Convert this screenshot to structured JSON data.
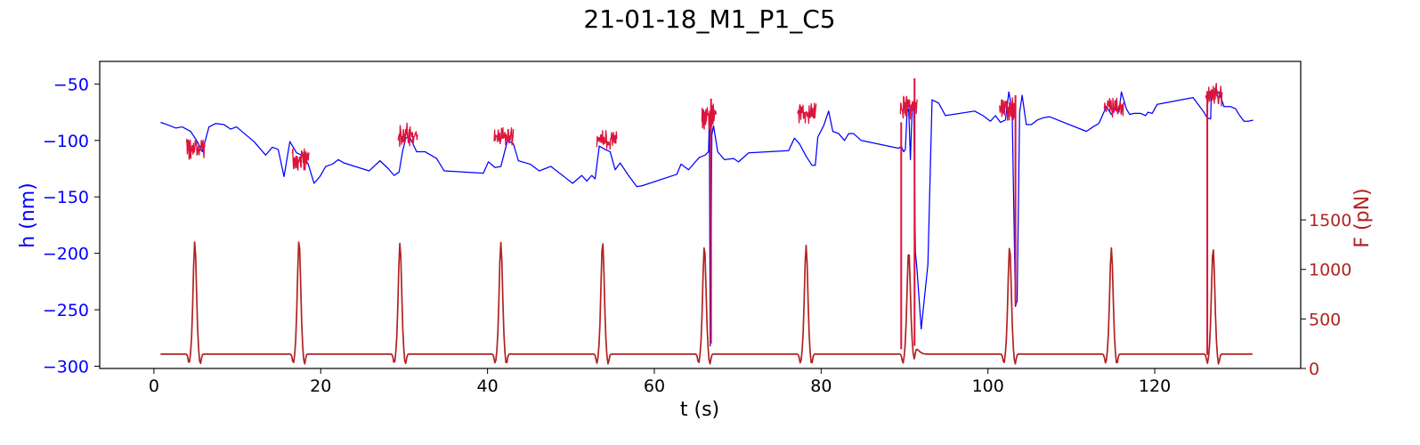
{
  "chart_data": {
    "type": "line",
    "title": "21-01-18_M1_P1_C5",
    "xlabel": "t (s)",
    "ylabel_left": "h (nm)",
    "ylabel_right": "F (pN)",
    "xlim": [
      -6.5,
      137.5
    ],
    "ylim_left": [
      -302,
      -30
    ],
    "ylim_right": [
      0,
      3100
    ],
    "x_ticks": [
      0,
      20,
      40,
      60,
      80,
      100,
      120
    ],
    "y_left_ticks": [
      -50,
      -100,
      -150,
      -200,
      -250,
      -300
    ],
    "y_right_ticks": [
      0,
      500,
      1000,
      1500
    ],
    "grid": false,
    "colors": {
      "height_line": "#0000ff",
      "height_noisy": "#dc143c",
      "force_line": "#b22222",
      "left_axis_text": "#0000ff",
      "right_axis_text": "#b22222"
    },
    "series": [
      {
        "name": "",
        "axis": "left",
        "color": "#0000ff",
        "points": [
          [
            0.8,
            -84
          ],
          [
            1.6,
            -86
          ],
          [
            2.6,
            -89
          ],
          [
            3.4,
            -88
          ],
          [
            4.4,
            -92
          ],
          [
            5.2,
            -101
          ],
          [
            5.8,
            -110
          ],
          [
            6.6,
            -88
          ],
          [
            7.4,
            -85
          ],
          [
            8.4,
            -86
          ],
          [
            9.2,
            -90
          ],
          [
            9.9,
            -88
          ],
          [
            12,
            -101
          ],
          [
            13.4,
            -113
          ],
          [
            14.2,
            -106
          ],
          [
            14.9,
            -108
          ],
          [
            15.6,
            -132
          ],
          [
            16.3,
            -101
          ],
          [
            17.1,
            -111
          ],
          [
            17.7,
            -113
          ],
          [
            18.5,
            -121
          ],
          [
            19.2,
            -138
          ],
          [
            19.9,
            -132
          ],
          [
            20.6,
            -123
          ],
          [
            21.4,
            -121
          ],
          [
            22.1,
            -117
          ],
          [
            22.8,
            -120
          ],
          [
            25.8,
            -127
          ],
          [
            27.1,
            -118
          ],
          [
            28.1,
            -125
          ],
          [
            28.8,
            -131
          ],
          [
            29.4,
            -128
          ],
          [
            29.8,
            -110
          ],
          [
            30.2,
            -98
          ],
          [
            30.6,
            -96
          ],
          [
            31.5,
            -110
          ],
          [
            32.5,
            -110
          ],
          [
            33.9,
            -116
          ],
          [
            34.8,
            -127
          ],
          [
            39.5,
            -129
          ],
          [
            40.1,
            -119
          ],
          [
            40.9,
            -124
          ],
          [
            41.6,
            -123
          ],
          [
            42.4,
            -100
          ],
          [
            43.1,
            -103
          ],
          [
            43.7,
            -118
          ],
          [
            45.1,
            -121
          ],
          [
            46.2,
            -127
          ],
          [
            46.9,
            -125
          ],
          [
            47.6,
            -123
          ],
          [
            50.2,
            -138
          ],
          [
            51.3,
            -131
          ],
          [
            51.9,
            -136
          ],
          [
            52.5,
            -131
          ],
          [
            52.9,
            -134
          ],
          [
            53.4,
            -105
          ],
          [
            54.1,
            -108
          ],
          [
            54.7,
            -110
          ],
          [
            55.3,
            -126
          ],
          [
            55.9,
            -120
          ],
          [
            56.9,
            -131
          ],
          [
            57.9,
            -141
          ],
          [
            58.6,
            -140
          ],
          [
            62.7,
            -130
          ],
          [
            63.2,
            -121
          ],
          [
            64.1,
            -126
          ],
          [
            64.8,
            -120
          ],
          [
            65.4,
            -115
          ],
          [
            66.1,
            -113
          ],
          [
            66.5,
            -110
          ],
          [
            66.6,
            -82
          ],
          [
            66.7,
            -282
          ],
          [
            66.9,
            -95
          ],
          [
            67.1,
            -87
          ],
          [
            67.6,
            -110
          ],
          [
            68.4,
            -117
          ],
          [
            69.5,
            -116
          ],
          [
            70.1,
            -119
          ],
          [
            71.3,
            -111
          ],
          [
            76.1,
            -109
          ],
          [
            76.8,
            -98
          ],
          [
            77.4,
            -103
          ],
          [
            78.2,
            -114
          ],
          [
            78.9,
            -122
          ],
          [
            79.3,
            -122
          ],
          [
            79.6,
            -97
          ],
          [
            80.3,
            -87
          ],
          [
            80.9,
            -74
          ],
          [
            81.4,
            -92
          ],
          [
            82.1,
            -94
          ],
          [
            82.8,
            -100
          ],
          [
            83.3,
            -94
          ],
          [
            83.9,
            -94
          ],
          [
            84.8,
            -100
          ],
          [
            89.3,
            -107
          ],
          [
            89.6,
            -105
          ],
          [
            89.9,
            -110
          ],
          [
            90.1,
            -108
          ],
          [
            90.3,
            -75
          ],
          [
            90.5,
            -72
          ],
          [
            90.7,
            -117
          ],
          [
            90.9,
            -75
          ],
          [
            91.1,
            -67
          ],
          [
            91.3,
            -199
          ],
          [
            91.5,
            -215
          ],
          [
            92,
            -267
          ],
          [
            92.8,
            -210
          ],
          [
            93.3,
            -64
          ],
          [
            94.1,
            -67
          ],
          [
            94.9,
            -78
          ],
          [
            98.4,
            -74
          ],
          [
            99.4,
            -78
          ],
          [
            100.3,
            -83
          ],
          [
            100.9,
            -78
          ],
          [
            101.5,
            -84
          ],
          [
            102.1,
            -82
          ],
          [
            102.5,
            -57
          ],
          [
            102.9,
            -73
          ],
          [
            103.3,
            -247
          ],
          [
            103.5,
            -242
          ],
          [
            103.8,
            -75
          ],
          [
            104.1,
            -60
          ],
          [
            104.6,
            -86
          ],
          [
            105.2,
            -86
          ],
          [
            105.9,
            -82
          ],
          [
            106.6,
            -80
          ],
          [
            107.4,
            -79
          ],
          [
            111.8,
            -92
          ],
          [
            112.6,
            -88
          ],
          [
            113.3,
            -85
          ],
          [
            114.2,
            -70
          ],
          [
            114.8,
            -77
          ],
          [
            115.3,
            -72
          ],
          [
            115.7,
            -75
          ],
          [
            116,
            -57
          ],
          [
            116.6,
            -72
          ],
          [
            117,
            -77
          ],
          [
            117.5,
            -76
          ],
          [
            118.3,
            -76
          ],
          [
            118.9,
            -78
          ],
          [
            119.2,
            -75
          ],
          [
            119.7,
            -76
          ],
          [
            120.3,
            -68
          ],
          [
            124.6,
            -62
          ],
          [
            125.2,
            -68
          ],
          [
            125.8,
            -74
          ],
          [
            126.3,
            -80
          ],
          [
            126.7,
            -81
          ],
          [
            126.8,
            -55
          ],
          [
            127.1,
            -60
          ],
          [
            127.7,
            -57
          ],
          [
            128.3,
            -70
          ],
          [
            129.1,
            -70
          ],
          [
            129.7,
            -72
          ],
          [
            130.1,
            -77
          ],
          [
            130.7,
            -83
          ],
          [
            131.2,
            -83
          ],
          [
            131.8,
            -82
          ]
        ]
      },
      {
        "name": "",
        "axis": "left",
        "color": "#dc143c",
        "segments": [
          {
            "x": [
              3.9,
              6.1
            ],
            "center": -107,
            "amp": 9
          },
          {
            "x": [
              16.6,
              18.6
            ],
            "center": -117,
            "amp": 9
          },
          {
            "x": [
              29.3,
              31.6
            ],
            "center": -95,
            "amp": 9
          },
          {
            "x": [
              40.8,
              43.1
            ],
            "center": -97,
            "amp": 8
          },
          {
            "x": [
              53.1,
              55.5
            ],
            "center": -100,
            "amp": 8
          },
          {
            "x": [
              65.7,
              67.4
            ],
            "center": -80,
            "amp": 10
          },
          {
            "x": [
              77.2,
              79.4
            ],
            "center": -76,
            "amp": 8
          },
          {
            "x": [
              89.5,
              91.5
            ],
            "center": -70,
            "amp": 10
          },
          {
            "x": [
              101.4,
              103.3
            ],
            "center": -72,
            "amp": 9
          },
          {
            "x": [
              113.9,
              116.3
            ],
            "center": -71,
            "amp": 8
          },
          {
            "x": [
              126.1,
              128.1
            ],
            "center": -59,
            "amp": 9
          }
        ],
        "spikes": [
          {
            "x": 66.8,
            "min": -280,
            "max": -63
          },
          {
            "x": 89.6,
            "min": -285,
            "max": -84
          },
          {
            "x": 91.2,
            "min": -282,
            "max": -45
          },
          {
            "x": 103.3,
            "min": -246,
            "max": -60
          },
          {
            "x": 126.3,
            "min": -290,
            "max": -57
          }
        ]
      },
      {
        "name": "",
        "axis": "right",
        "color": "#b22222",
        "baseline": 145,
        "pulses": [
          {
            "t": 4.9,
            "peak": 1282
          },
          {
            "t": 17.4,
            "peak": 1298
          },
          {
            "t": 29.5,
            "peak": 1268
          },
          {
            "t": 41.6,
            "peak": 1272
          },
          {
            "t": 53.8,
            "peak": 1280
          },
          {
            "t": 66.0,
            "peak": 1238
          },
          {
            "t": 78.2,
            "peak": 1242
          },
          {
            "t": 90.5,
            "peak": 1192
          },
          {
            "t": 102.6,
            "peak": 1233
          },
          {
            "t": 114.8,
            "peak": 1217
          },
          {
            "t": 127.0,
            "peak": 1218
          }
        ],
        "x_start": 0.8,
        "x_end": 131.8
      }
    ]
  }
}
